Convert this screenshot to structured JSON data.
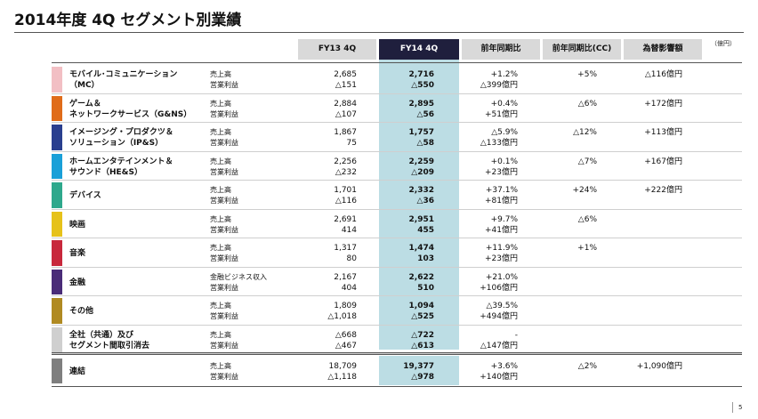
{
  "title": "2014年度 4Q セグメント別業績",
  "unit": "（億円）",
  "page_number": "5",
  "headers": {
    "fy13": "FY13 4Q",
    "fy14": "FY14 4Q",
    "yoy": "前年同期比",
    "yoy_cc": "前年同期比(CC)",
    "fx": "為替影響額"
  },
  "segments": [
    {
      "name_1": "モバイル･コミュニケーション",
      "name_2": "（MC）",
      "color": "#f2bfc4",
      "label_1": "売上高",
      "label_2": "営業利益",
      "fy13_1": "2,685",
      "fy13_2": "△151",
      "fy14_1": "2,716",
      "fy14_2": "△550",
      "yoy_1": "+1.2%",
      "yoy_2": "△399億円",
      "cc": "+5%",
      "fx": "△116億円"
    },
    {
      "name_1": "ゲーム＆",
      "name_2": "ネットワークサービス（G&NS）",
      "color": "#e06c1a",
      "label_1": "売上高",
      "label_2": "営業利益",
      "fy13_1": "2,884",
      "fy13_2": "△107",
      "fy14_1": "2,895",
      "fy14_2": "△56",
      "yoy_1": "+0.4%",
      "yoy_2": "+51億円",
      "cc": "△6%",
      "fx": "+172億円"
    },
    {
      "name_1": "イメージング・プロダクツ＆",
      "name_2": "ソリューション（IP&S）",
      "color": "#2a3f8f",
      "label_1": "売上高",
      "label_2": "営業利益",
      "fy13_1": "1,867",
      "fy13_2": "75",
      "fy14_1": "1,757",
      "fy14_2": "△58",
      "yoy_1": "△5.9%",
      "yoy_2": "△133億円",
      "cc": "△12%",
      "fx": "+113億円"
    },
    {
      "name_1": "ホームエンタテインメント＆",
      "name_2": "サウンド（HE&S）",
      "color": "#1aa0d8",
      "label_1": "売上高",
      "label_2": "営業利益",
      "fy13_1": "2,256",
      "fy13_2": "△232",
      "fy14_1": "2,259",
      "fy14_2": "△209",
      "yoy_1": "+0.1%",
      "yoy_2": "+23億円",
      "cc": "△7%",
      "fx": "+167億円"
    },
    {
      "name_1": "デバイス",
      "name_2": "",
      "color": "#2ea88c",
      "label_1": "売上高",
      "label_2": "営業利益",
      "fy13_1": "1,701",
      "fy13_2": "△116",
      "fy14_1": "2,332",
      "fy14_2": "△36",
      "yoy_1": "+37.1%",
      "yoy_2": "+81億円",
      "cc": "+24%",
      "fx": "+222億円"
    },
    {
      "name_1": "映画",
      "name_2": "",
      "color": "#e6c21a",
      "label_1": "売上高",
      "label_2": "営業利益",
      "fy13_1": "2,691",
      "fy13_2": "414",
      "fy14_1": "2,951",
      "fy14_2": "455",
      "yoy_1": "+9.7%",
      "yoy_2": "+41億円",
      "cc": "△6%",
      "fx": ""
    },
    {
      "name_1": "音楽",
      "name_2": "",
      "color": "#c8283c",
      "label_1": "売上高",
      "label_2": "営業利益",
      "fy13_1": "1,317",
      "fy13_2": "80",
      "fy14_1": "1,474",
      "fy14_2": "103",
      "yoy_1": "+11.9%",
      "yoy_2": "+23億円",
      "cc": "+1%",
      "fx": ""
    },
    {
      "name_1": "金融",
      "name_2": "",
      "color": "#4a2c78",
      "label_1": "金融ビジネス収入",
      "label_2": "営業利益",
      "fy13_1": "2,167",
      "fy13_2": "404",
      "fy14_1": "2,622",
      "fy14_2": "510",
      "yoy_1": "+21.0%",
      "yoy_2": "+106億円",
      "cc": "",
      "fx": ""
    },
    {
      "name_1": "その他",
      "name_2": "",
      "color": "#b08a22",
      "label_1": "売上高",
      "label_2": "営業利益",
      "fy13_1": "1,809",
      "fy13_2": "△1,018",
      "fy14_1": "1,094",
      "fy14_2": "△525",
      "yoy_1": "△39.5%",
      "yoy_2": "+494億円",
      "cc": "",
      "fx": ""
    },
    {
      "name_1": "全社（共通）及び",
      "name_2": "セグメント間取引消去",
      "color": "#cfcfcf",
      "label_1": "売上高",
      "label_2": "営業利益",
      "fy13_1": "△668",
      "fy13_2": "△467",
      "fy14_1": "△722",
      "fy14_2": "△613",
      "yoy_1": "-",
      "yoy_2": "△147億円",
      "cc": "",
      "fx": ""
    }
  ],
  "total": {
    "name_1": "連結",
    "name_2": "",
    "color": "#7f7f7f",
    "label_1": "売上高",
    "label_2": "営業利益",
    "fy13_1": "18,709",
    "fy13_2": "△1,118",
    "fy14_1": "19,377",
    "fy14_2": "△978",
    "yoy_1": "+3.6%",
    "yoy_2": "+140億円",
    "cc": "△2%",
    "fx": "+1,090億円"
  }
}
